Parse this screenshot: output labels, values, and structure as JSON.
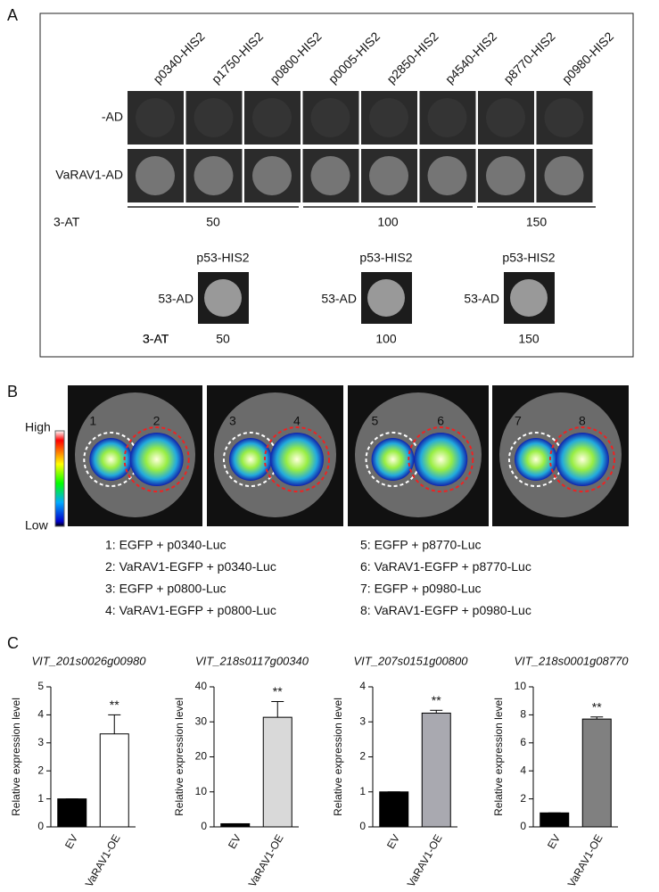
{
  "panel_a": {
    "label": "A",
    "columns": [
      "p0340-HIS2",
      "p1750-HIS2",
      "p0800-HIS2",
      "p0005-HIS2",
      "p2850-HIS2",
      "p4540-HIS2",
      "p8770-HIS2",
      "p0980-HIS2"
    ],
    "rows": [
      "-AD",
      "VaRAV1-AD"
    ],
    "at_label": "3-AT",
    "at_values": [
      50,
      100,
      150
    ],
    "control_header": "p53-HIS2",
    "control_row": "53-AD"
  },
  "panel_b": {
    "label": "B",
    "scale_high": "High",
    "scale_low": "Low",
    "spots": [
      "1",
      "2",
      "3",
      "4",
      "5",
      "6",
      "7",
      "8"
    ],
    "legend": [
      "1: EGFP + p0340-Luc",
      "2: VaRAV1-EGFP + p0340-Luc",
      "3: EGFP + p0800-Luc",
      "4: VaRAV1-EGFP + p0800-Luc",
      "5: EGFP + p8770-Luc",
      "6: VaRAV1-EGFP + p8770-Luc",
      "7: EGFP + p0980-Luc",
      "8: VaRAV1-EGFP + p0980-Luc"
    ]
  },
  "panel_c": {
    "label": "C"
  },
  "chart_data": [
    {
      "type": "bar",
      "title": "VIT_201s0026g00980",
      "y_label": "Relative expression level",
      "categories": [
        "EV",
        "VaRAV1-OE"
      ],
      "values": [
        1,
        3.32
      ],
      "errors": [
        0,
        0.68
      ],
      "colors": [
        "#000000",
        "#ffffff"
      ],
      "annotation": "**",
      "ylim": [
        0,
        5
      ],
      "yticks": [
        0,
        1,
        2,
        3,
        4,
        5
      ]
    },
    {
      "type": "bar",
      "title": "VIT_218s0117g00340",
      "y_label": "Relative expression level",
      "categories": [
        "EV",
        "VaRAV1-OE"
      ],
      "values": [
        0.9,
        31.3
      ],
      "errors": [
        0,
        4.5
      ],
      "colors": [
        "#000000",
        "#d9d9d9"
      ],
      "annotation": "**",
      "ylim": [
        0,
        40
      ],
      "yticks": [
        0,
        10,
        20,
        30,
        40
      ]
    },
    {
      "type": "bar",
      "title": "VIT_207s0151g00800",
      "y_label": "Relative expression level",
      "categories": [
        "EV",
        "VaRAV1-OE"
      ],
      "values": [
        1,
        3.25
      ],
      "errors": [
        0,
        0.08
      ],
      "colors": [
        "#000000",
        "#a9a9b0"
      ],
      "annotation": "**",
      "ylim": [
        0,
        4
      ],
      "yticks": [
        0,
        1,
        2,
        3,
        4
      ]
    },
    {
      "type": "bar",
      "title": "VIT_218s0001g08770",
      "y_label": "Relative expression level",
      "categories": [
        "EV",
        "VaRAV1-OE"
      ],
      "values": [
        1,
        7.7
      ],
      "errors": [
        0,
        0.15
      ],
      "colors": [
        "#000000",
        "#808080"
      ],
      "annotation": "**",
      "ylim": [
        0,
        10
      ],
      "yticks": [
        0,
        2,
        4,
        6,
        8,
        10
      ]
    }
  ]
}
